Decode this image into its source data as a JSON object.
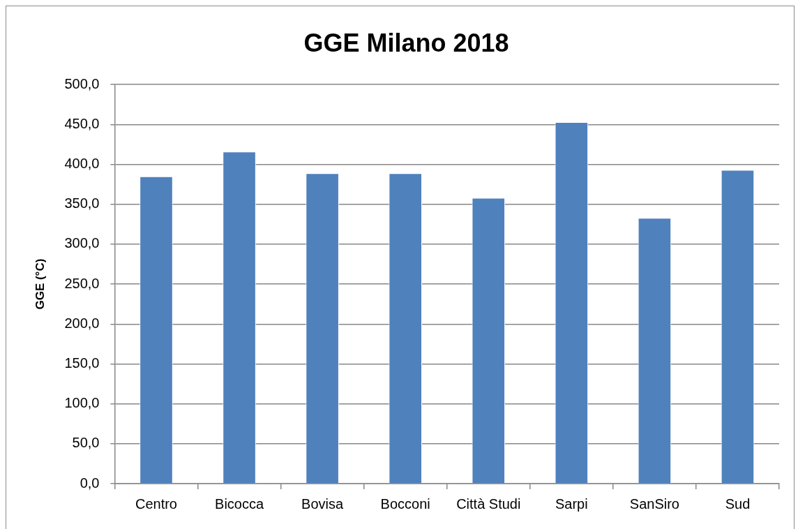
{
  "chart_data": {
    "type": "bar",
    "title": "GGE Milano 2018",
    "ylabel": "GGE (°C)",
    "categories": [
      "Centro",
      "Bicocca",
      "Bovisa",
      "Bocconi",
      "Città Studi",
      "Sarpi",
      "SanSiro",
      "Sud"
    ],
    "values": [
      385,
      416,
      389,
      389,
      358,
      453,
      333,
      393
    ],
    "color": "#4f81bd",
    "ylim": [
      0,
      500
    ],
    "yticks": [
      {
        "value": 0,
        "label": "0,0"
      },
      {
        "value": 50,
        "label": "50,0"
      },
      {
        "value": 100,
        "label": "100,0"
      },
      {
        "value": 150,
        "label": "150,0"
      },
      {
        "value": 200,
        "label": "200,0"
      },
      {
        "value": 250,
        "label": "250,0"
      },
      {
        "value": 300,
        "label": "300,0"
      },
      {
        "value": 350,
        "label": "350,0"
      },
      {
        "value": 400,
        "label": "400,0"
      },
      {
        "value": 450,
        "label": "450,0"
      },
      {
        "value": 500,
        "label": "500,0"
      }
    ],
    "grid": "y"
  }
}
